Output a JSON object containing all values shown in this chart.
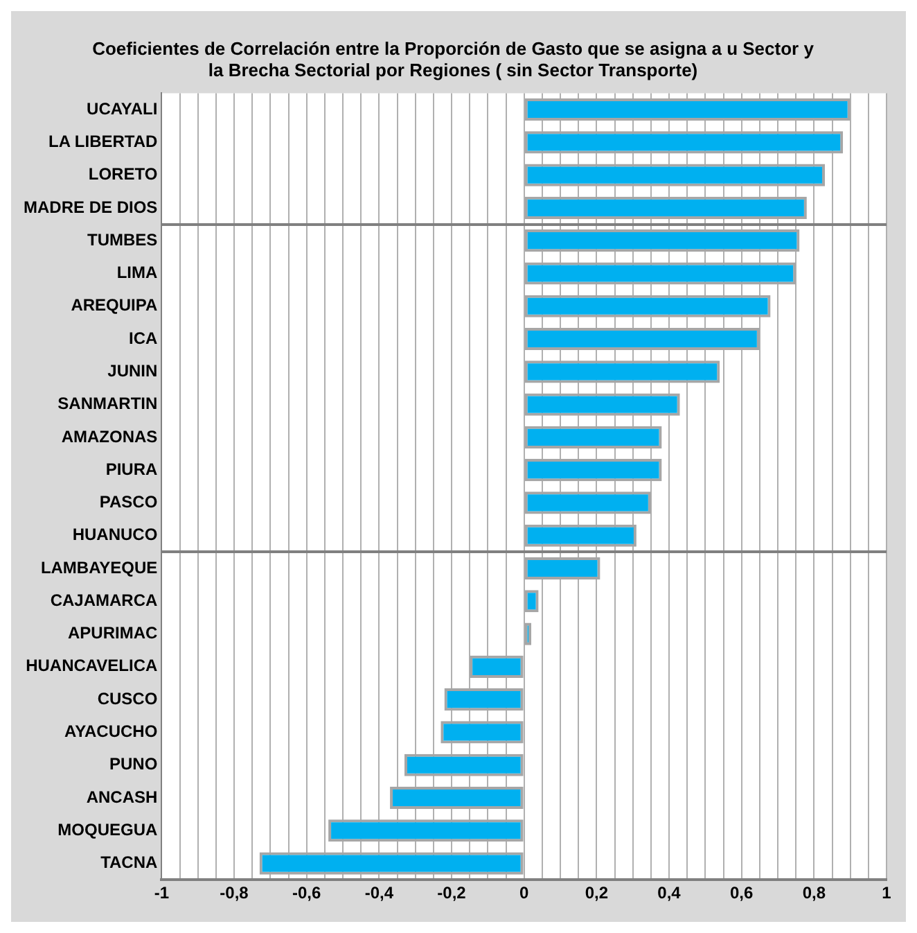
{
  "chart_data": {
    "type": "bar",
    "orientation": "horizontal",
    "title": "Coeficientes de Correlación entre la Proporción de Gasto que se asigna a u Sector y la Brecha Sectorial por Regiones ( sin Sector Transporte)",
    "categories": [
      "UCAYALI",
      "LA LIBERTAD",
      "LORETO",
      "MADRE DE DIOS",
      "TUMBES",
      "LIMA",
      "AREQUIPA",
      "ICA",
      "JUNIN",
      "SANMARTIN",
      "AMAZONAS",
      "PIURA",
      "PASCO",
      "HUANUCO",
      "LAMBAYEQUE",
      "CAJAMARCA",
      "APURIMAC",
      "HUANCAVELICA",
      "CUSCO",
      "AYACUCHO",
      "PUNO",
      "ANCASH",
      "MOQUEGUA",
      "TACNA"
    ],
    "series": [
      {
        "color": "#00b0f0",
        "values": [
          0.9,
          0.88,
          0.83,
          0.78,
          0.76,
          0.75,
          0.68,
          0.65,
          0.54,
          0.43,
          0.38,
          0.38,
          0.35,
          0.31,
          0.21,
          0.04,
          0.02,
          -0.15,
          -0.22,
          -0.23,
          -0.33,
          -0.37,
          -0.54,
          -0.73
        ]
      }
    ],
    "xlim": [
      -1,
      1
    ],
    "xticks": [
      -1,
      {
        "value": -0.95,
        "label": null
      },
      {
        "value": -0.9,
        "label": null
      },
      {
        "value": -0.85,
        "label": null
      },
      {
        "value": -0.8,
        "label": "-0,8"
      },
      {
        "value": -0.75,
        "label": null
      },
      {
        "value": -0.7,
        "label": null
      },
      {
        "value": -0.65,
        "label": null
      },
      {
        "value": -0.6,
        "label": "-0,6"
      },
      {
        "value": -0.55,
        "label": null
      },
      {
        "value": -0.5,
        "label": null
      },
      {
        "value": -0.45,
        "label": null
      },
      {
        "value": -0.4,
        "label": "-0,4"
      },
      {
        "value": -0.35,
        "label": null
      },
      {
        "value": -0.3,
        "label": null
      },
      {
        "value": -0.25,
        "label": null
      },
      {
        "value": -0.2,
        "label": "-0,2"
      },
      {
        "value": -0.15,
        "label": null
      },
      {
        "value": -0.1,
        "label": null
      },
      {
        "value": -0.05,
        "label": null
      },
      0,
      {
        "value": 0.05,
        "label": null
      },
      {
        "value": 0.1,
        "label": null
      },
      {
        "value": 0.15,
        "label": null
      },
      {
        "value": 0.2,
        "label": "0,2"
      },
      {
        "value": 0.25,
        "label": null
      },
      {
        "value": 0.3,
        "label": null
      },
      {
        "value": 0.35,
        "label": null
      },
      {
        "value": 0.4,
        "label": "0,4"
      },
      {
        "value": 0.45,
        "label": null
      },
      {
        "value": 0.5,
        "label": null
      },
      {
        "value": 0.55,
        "label": null
      },
      {
        "value": 0.6,
        "label": "0,6"
      },
      {
        "value": 0.65,
        "label": null
      },
      {
        "value": 0.7,
        "label": null
      },
      {
        "value": 0.75,
        "label": null
      },
      {
        "value": 0.8,
        "label": "0,8"
      },
      {
        "value": 0.85,
        "label": null
      },
      {
        "value": 0.9,
        "label": null
      },
      {
        "value": 0.95,
        "label": null
      },
      1
    ],
    "grid": "x",
    "legend": false
  }
}
